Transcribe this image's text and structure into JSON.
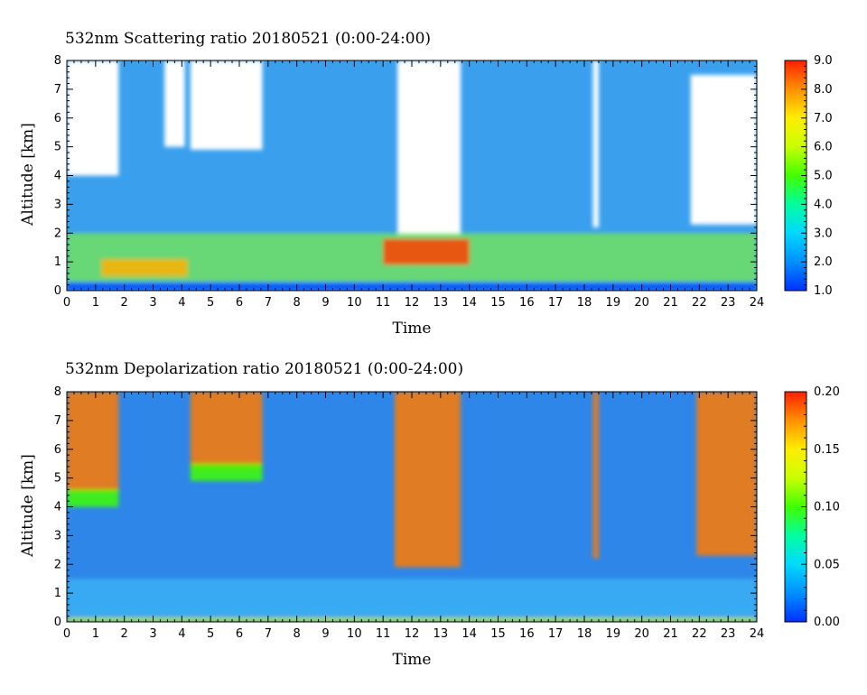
{
  "chart_data": [
    {
      "type": "heatmap",
      "title": "532nm Scattering ratio  20180521 (0:00-24:00)",
      "xlabel": "Time",
      "ylabel": "Altitude [km]",
      "xlim": [
        0,
        24
      ],
      "ylim": [
        0,
        8
      ],
      "x_ticks": [
        "0",
        "1",
        "2",
        "3",
        "4",
        "5",
        "6",
        "7",
        "8",
        "9",
        "10",
        "11",
        "12",
        "13",
        "14",
        "15",
        "16",
        "17",
        "18",
        "19",
        "20",
        "21",
        "22",
        "23",
        "24"
      ],
      "y_ticks": [
        "0",
        "1",
        "2",
        "3",
        "4",
        "5",
        "6",
        "7",
        "8"
      ],
      "colorbar": {
        "range": [
          1.0,
          9.0
        ],
        "ticks": [
          "1.0",
          "2.0",
          "3.0",
          "4.0",
          "5.0",
          "6.0",
          "7.0",
          "8.0",
          "9.0"
        ],
        "palette": [
          "#0030ff",
          "#0090ff",
          "#00d8ff",
          "#00ffa0",
          "#40ff00",
          "#c8ff00",
          "#ffee00",
          "#ff9000",
          "#ff2000"
        ]
      },
      "background_color": "#3aa0ee",
      "features": [
        {
          "kind": "no-data",
          "color": "#ffffff",
          "x": [
            0,
            1.8
          ],
          "y": [
            4.0,
            8
          ]
        },
        {
          "kind": "no-data",
          "color": "#ffffff",
          "x": [
            3.4,
            4.1
          ],
          "y": [
            5.0,
            8
          ]
        },
        {
          "kind": "no-data",
          "color": "#ffffff",
          "x": [
            4.3,
            6.8
          ],
          "y": [
            4.9,
            8
          ]
        },
        {
          "kind": "no-data",
          "color": "#ffffff",
          "x": [
            11.5,
            13.7
          ],
          "y": [
            1.9,
            8
          ]
        },
        {
          "kind": "no-data",
          "color": "#ffffff",
          "x": [
            18.3,
            18.5
          ],
          "y": [
            2.2,
            8
          ]
        },
        {
          "kind": "no-data",
          "color": "#ffffff",
          "x": [
            21.7,
            24
          ],
          "y": [
            2.3,
            7.5
          ]
        },
        {
          "kind": "aerosol-layer",
          "color": "#70e060",
          "x": [
            0,
            24
          ],
          "y": [
            0.3,
            2.0
          ]
        },
        {
          "kind": "aerosol-core",
          "color": "#ffb000",
          "x": [
            1.2,
            4.2
          ],
          "y": [
            0.5,
            1.1
          ]
        },
        {
          "kind": "aerosol-core",
          "color": "#ff4000",
          "x": [
            11,
            14
          ],
          "y": [
            0.9,
            1.8
          ]
        },
        {
          "kind": "surface",
          "color": "#0050ff",
          "x": [
            0,
            24
          ],
          "y": [
            0,
            0.3
          ]
        }
      ]
    },
    {
      "type": "heatmap",
      "title": "532nm Depolarization ratio  20180521 (0:00-24:00)",
      "xlabel": "Time",
      "ylabel": "Altitude [km]",
      "xlim": [
        0,
        24
      ],
      "ylim": [
        0,
        8
      ],
      "x_ticks": [
        "0",
        "1",
        "2",
        "3",
        "4",
        "5",
        "6",
        "7",
        "8",
        "9",
        "10",
        "11",
        "12",
        "13",
        "14",
        "15",
        "16",
        "17",
        "18",
        "19",
        "20",
        "21",
        "22",
        "23",
        "24"
      ],
      "y_ticks": [
        "0",
        "1",
        "2",
        "3",
        "4",
        "5",
        "6",
        "7",
        "8"
      ],
      "colorbar": {
        "range": [
          0.0,
          0.2
        ],
        "ticks": [
          "0.00",
          "0.05",
          "0.10",
          "0.15",
          "0.20"
        ],
        "palette": [
          "#0030ff",
          "#0090ff",
          "#00d8ff",
          "#00ffa0",
          "#40ff00",
          "#c8ff00",
          "#ffee00",
          "#ff9000",
          "#ff2000"
        ]
      },
      "background_color": "#2e86e8",
      "features": [
        {
          "kind": "high-depol",
          "color": "#ff7a00",
          "x": [
            0,
            1.8
          ],
          "y": [
            4.5,
            8
          ]
        },
        {
          "kind": "cloud-base",
          "color": "#40ff00",
          "x": [
            0,
            1.8
          ],
          "y": [
            4.0,
            4.6
          ]
        },
        {
          "kind": "high-depol",
          "color": "#ff7a00",
          "x": [
            4.3,
            6.8
          ],
          "y": [
            5.3,
            8
          ]
        },
        {
          "kind": "cloud-base",
          "color": "#40ff00",
          "x": [
            4.3,
            6.8
          ],
          "y": [
            4.9,
            5.5
          ]
        },
        {
          "kind": "high-depol",
          "color": "#ff7a00",
          "x": [
            11.4,
            13.7
          ],
          "y": [
            1.9,
            8
          ]
        },
        {
          "kind": "high-depol",
          "color": "#ff7a00",
          "x": [
            18.3,
            18.5
          ],
          "y": [
            2.2,
            8
          ]
        },
        {
          "kind": "high-depol",
          "color": "#ff7a00",
          "x": [
            21.9,
            24
          ],
          "y": [
            2.3,
            8
          ]
        },
        {
          "kind": "aerosol-layer",
          "color": "#3ab0f5",
          "x": [
            0,
            24
          ],
          "y": [
            0.2,
            1.5
          ]
        },
        {
          "kind": "surface",
          "color": "#c8ff00",
          "x": [
            0,
            24
          ],
          "y": [
            0,
            0.15
          ]
        }
      ]
    }
  ]
}
